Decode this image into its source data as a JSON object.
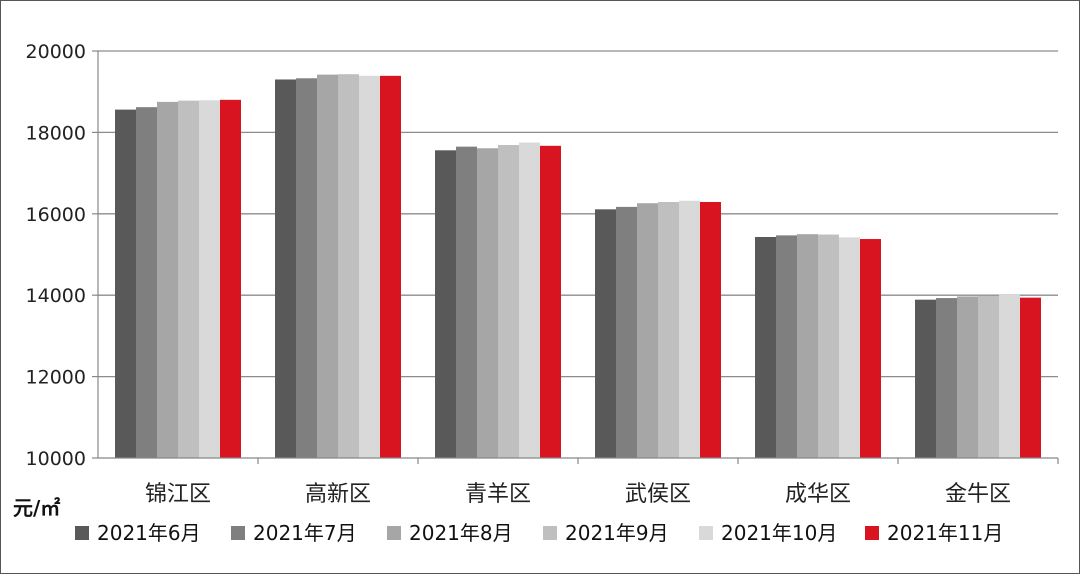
{
  "chart_data": {
    "type": "bar",
    "unit_label": "元/㎡",
    "categories": [
      "锦江区",
      "高新区",
      "青羊区",
      "武侯区",
      "成华区",
      "金牛区"
    ],
    "series": [
      {
        "name": "2021年6月",
        "color": "#595959",
        "values": [
          18560,
          19300,
          17560,
          16110,
          15430,
          13890
        ]
      },
      {
        "name": "2021年7月",
        "color": "#7f7f7f",
        "values": [
          18620,
          19330,
          17650,
          16170,
          15470,
          13930
        ]
      },
      {
        "name": "2021年8月",
        "color": "#a6a6a6",
        "values": [
          18750,
          19420,
          17610,
          16260,
          15500,
          13970
        ]
      },
      {
        "name": "2021年9月",
        "color": "#bfbfbf",
        "values": [
          18780,
          19430,
          17690,
          16290,
          15490,
          13980
        ]
      },
      {
        "name": "2021年10月",
        "color": "#d9d9d9",
        "values": [
          18790,
          19390,
          17750,
          16320,
          15420,
          14010
        ]
      },
      {
        "name": "2021年11月",
        "color": "#d7141f",
        "values": [
          18800,
          19390,
          17670,
          16290,
          15380,
          13940
        ]
      }
    ],
    "yticks": [
      "10000",
      "12000",
      "14000",
      "16000",
      "18000",
      "20000"
    ],
    "ylim": [
      10000,
      20000
    ],
    "grid": true,
    "legend_position": "bottom"
  }
}
